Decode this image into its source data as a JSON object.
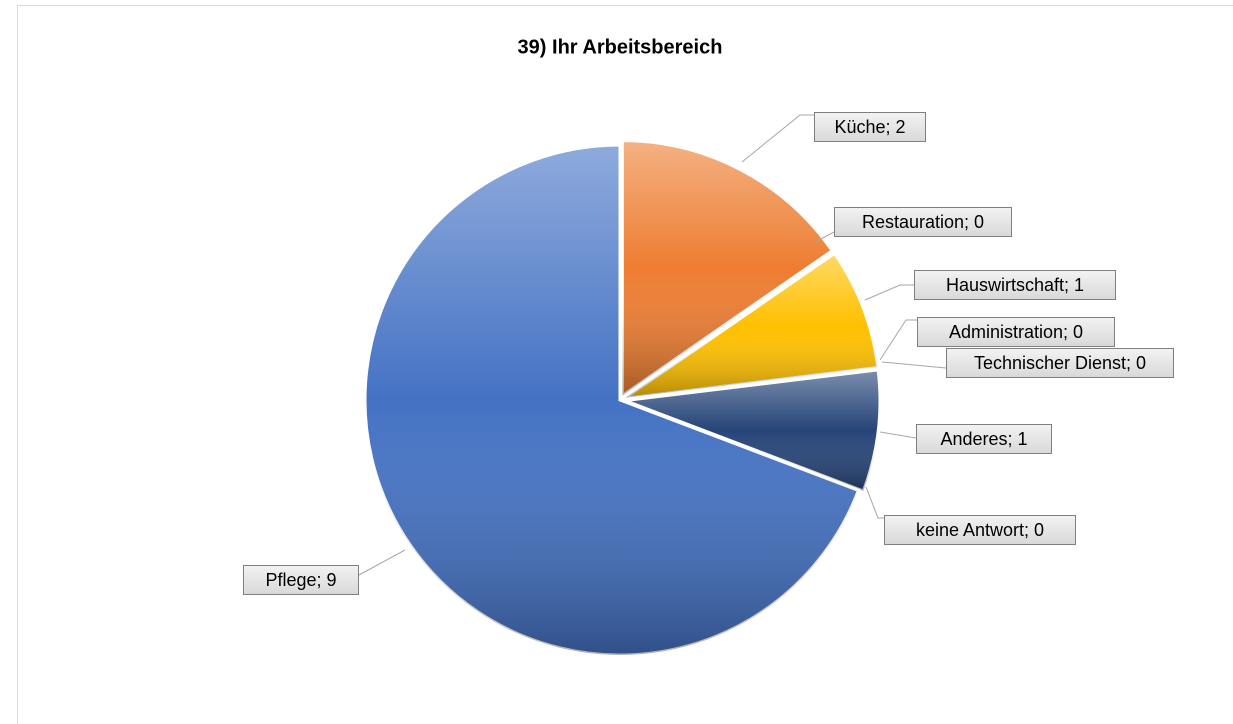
{
  "chart_data": {
    "type": "pie",
    "title": "39) Ihr Arbeitsbereich",
    "categories": [
      "Küche",
      "Restauration",
      "Hauswirtschaft",
      "Administration",
      "Technischer Dienst",
      "Anderes",
      "keine Antwort",
      "Pflege"
    ],
    "values": [
      2,
      0,
      1,
      0,
      0,
      1,
      0,
      9
    ],
    "value_labels": [
      "Küche; 2",
      "Restauration; 0",
      "Hauswirtschaft; 1",
      "Administration; 0",
      "Technischer Dienst; 0",
      "Anderes; 1",
      "keine Antwort; 0",
      "Pflege; 9"
    ],
    "colors": [
      "#ed7d31",
      "#a5a5a5",
      "#ffc000",
      "#5b9bd5",
      "#70ad47",
      "#264478",
      "#9e480e",
      "#4472c4"
    ]
  }
}
